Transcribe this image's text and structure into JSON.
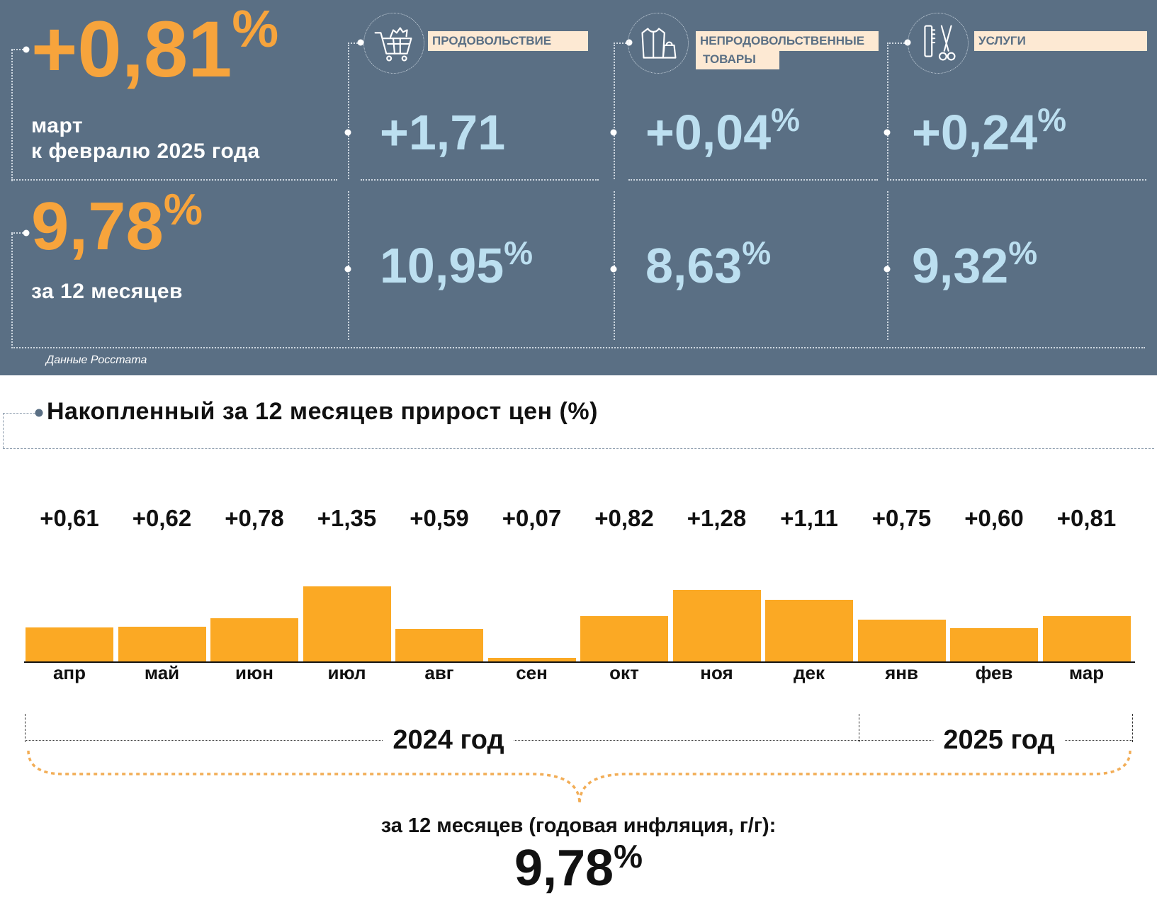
{
  "summary": {
    "monthly": {
      "value": "+0,81",
      "percent": "%",
      "caption_line1": "март",
      "caption_line2": "к февралю 2025 года"
    },
    "annual": {
      "value": "9,78",
      "percent": "%",
      "caption": "за 12 месяцев"
    },
    "source": "Данные Росстата"
  },
  "categories": [
    {
      "name": "ПРОДОВОЛЬСТВИЕ",
      "icon": "shopping-cart-icon",
      "monthly": "+1,71",
      "monthly_percent": "",
      "annual": "10,95",
      "annual_percent": "%"
    },
    {
      "name": "НЕПРОДОВОЛЬСТВЕННЫЕ ТОВАРЫ",
      "name_line1": "НЕПРОДОВОЛЬСТВЕННЫЕ",
      "name_line2": "ТОВАРЫ",
      "icon": "clothes-bag-icon",
      "monthly": "+0,04",
      "monthly_percent": "%",
      "annual": "8,63",
      "annual_percent": "%"
    },
    {
      "name": "УСЛУГИ",
      "icon": "scissors-comb-icon",
      "monthly": "+0,24",
      "monthly_percent": "%",
      "annual": "9,32",
      "annual_percent": "%"
    }
  ],
  "colors": {
    "panel": "#5a6f84",
    "orange": "#f7a43c",
    "bar": "#fba924",
    "light_blue": "#bcdff0",
    "label_bg": "#fde9d3"
  },
  "chart_data": {
    "type": "bar",
    "title": "Накопленный за 12 месяцев прирост цен (%)",
    "categories": [
      "апр",
      "май",
      "июн",
      "июл",
      "авг",
      "сен",
      "окт",
      "ноя",
      "дек",
      "янв",
      "фев",
      "мар"
    ],
    "values": [
      0.61,
      0.62,
      0.78,
      1.35,
      0.59,
      0.07,
      0.82,
      1.28,
      1.11,
      0.75,
      0.6,
      0.81
    ],
    "value_labels": [
      "+0,61",
      "+0,62",
      "+0,78",
      "+1,35",
      "+0,59",
      "+0,07",
      "+0,82",
      "+1,28",
      "+1,11",
      "+0,75",
      "+0,60",
      "+0,81"
    ],
    "year_groups": [
      {
        "label": "2024 год",
        "months": 9
      },
      {
        "label": "2025 год",
        "months": 3
      }
    ],
    "grid": false
  },
  "total": {
    "caption": "за 12 месяцев (годовая инфляция, г/г):",
    "value": "9,78",
    "percent": "%"
  }
}
